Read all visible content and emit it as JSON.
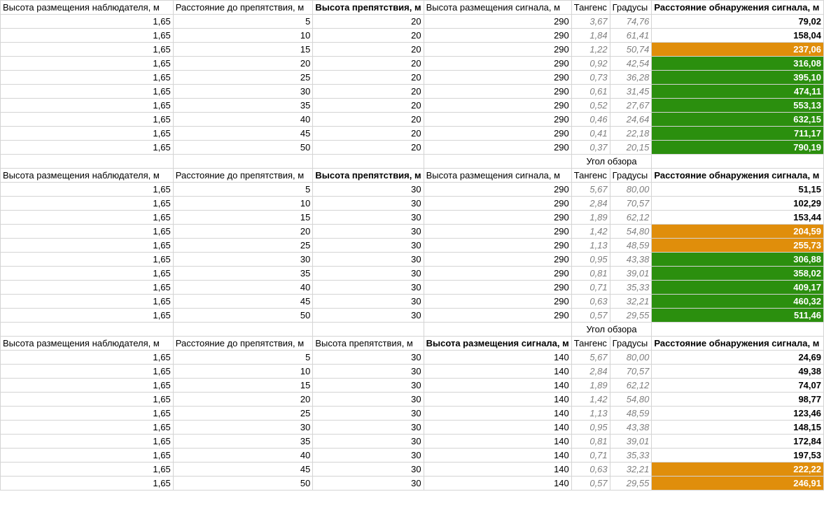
{
  "colors": {
    "orange": "#e08e0b",
    "green": "#2b8f0e",
    "gray_text": "#7f7f7f",
    "grid": "#d4d4d4"
  },
  "blocks": [
    {
      "caption": "",
      "headers": [
        "Высота размещения наблюдателя, м",
        "Расстояние до препятствия, м",
        "Высота препятствия, м",
        "Высота размещения сигнала, м",
        "Тангенс",
        "Градусы",
        "Расстояние обнаружения сигнала, м"
      ],
      "bold_headers": [
        2,
        6
      ],
      "rows": [
        {
          "c": [
            "1,65",
            "5",
            "20",
            "290",
            "3,67",
            "74,76",
            "79,02"
          ],
          "fill": ""
        },
        {
          "c": [
            "1,65",
            "10",
            "20",
            "290",
            "1,84",
            "61,41",
            "158,04"
          ],
          "fill": ""
        },
        {
          "c": [
            "1,65",
            "15",
            "20",
            "290",
            "1,22",
            "50,74",
            "237,06"
          ],
          "fill": "orange"
        },
        {
          "c": [
            "1,65",
            "20",
            "20",
            "290",
            "0,92",
            "42,54",
            "316,08"
          ],
          "fill": "green"
        },
        {
          "c": [
            "1,65",
            "25",
            "20",
            "290",
            "0,73",
            "36,28",
            "395,10"
          ],
          "fill": "green"
        },
        {
          "c": [
            "1,65",
            "30",
            "20",
            "290",
            "0,61",
            "31,45",
            "474,11"
          ],
          "fill": "green"
        },
        {
          "c": [
            "1,65",
            "35",
            "20",
            "290",
            "0,52",
            "27,67",
            "553,13"
          ],
          "fill": "green"
        },
        {
          "c": [
            "1,65",
            "40",
            "20",
            "290",
            "0,46",
            "24,64",
            "632,15"
          ],
          "fill": "green"
        },
        {
          "c": [
            "1,65",
            "45",
            "20",
            "290",
            "0,41",
            "22,18",
            "711,17"
          ],
          "fill": "green"
        },
        {
          "c": [
            "1,65",
            "50",
            "20",
            "290",
            "0,37",
            "20,15",
            "790,19"
          ],
          "fill": "green"
        }
      ]
    },
    {
      "caption": "Угол обзора",
      "headers": [
        "Высота размещения наблюдателя, м",
        "Расстояние до препятствия, м",
        "Высота препятствия, м",
        "Высота размещения сигнала, м",
        "Тангенс",
        "Градусы",
        "Расстояние обнаружения сигнала, м"
      ],
      "bold_headers": [
        2,
        6
      ],
      "rows": [
        {
          "c": [
            "1,65",
            "5",
            "30",
            "290",
            "5,67",
            "80,00",
            "51,15"
          ],
          "fill": ""
        },
        {
          "c": [
            "1,65",
            "10",
            "30",
            "290",
            "2,84",
            "70,57",
            "102,29"
          ],
          "fill": ""
        },
        {
          "c": [
            "1,65",
            "15",
            "30",
            "290",
            "1,89",
            "62,12",
            "153,44"
          ],
          "fill": ""
        },
        {
          "c": [
            "1,65",
            "20",
            "30",
            "290",
            "1,42",
            "54,80",
            "204,59"
          ],
          "fill": "orange"
        },
        {
          "c": [
            "1,65",
            "25",
            "30",
            "290",
            "1,13",
            "48,59",
            "255,73"
          ],
          "fill": "orange"
        },
        {
          "c": [
            "1,65",
            "30",
            "30",
            "290",
            "0,95",
            "43,38",
            "306,88"
          ],
          "fill": "green"
        },
        {
          "c": [
            "1,65",
            "35",
            "30",
            "290",
            "0,81",
            "39,01",
            "358,02"
          ],
          "fill": "green"
        },
        {
          "c": [
            "1,65",
            "40",
            "30",
            "290",
            "0,71",
            "35,33",
            "409,17"
          ],
          "fill": "green"
        },
        {
          "c": [
            "1,65",
            "45",
            "30",
            "290",
            "0,63",
            "32,21",
            "460,32"
          ],
          "fill": "green"
        },
        {
          "c": [
            "1,65",
            "50",
            "30",
            "290",
            "0,57",
            "29,55",
            "511,46"
          ],
          "fill": "green"
        }
      ]
    },
    {
      "caption": "Угол обзора",
      "headers": [
        "Высота размещения наблюдателя, м",
        "Расстояние до препятствия, м",
        "Высота препятствия, м",
        "Высота размещения сигнала, м",
        "Тангенс",
        "Градусы",
        "Расстояние обнаружения сигнала, м"
      ],
      "bold_headers": [
        3,
        6
      ],
      "rows": [
        {
          "c": [
            "1,65",
            "5",
            "30",
            "140",
            "5,67",
            "80,00",
            "24,69"
          ],
          "fill": ""
        },
        {
          "c": [
            "1,65",
            "10",
            "30",
            "140",
            "2,84",
            "70,57",
            "49,38"
          ],
          "fill": ""
        },
        {
          "c": [
            "1,65",
            "15",
            "30",
            "140",
            "1,89",
            "62,12",
            "74,07"
          ],
          "fill": ""
        },
        {
          "c": [
            "1,65",
            "20",
            "30",
            "140",
            "1,42",
            "54,80",
            "98,77"
          ],
          "fill": ""
        },
        {
          "c": [
            "1,65",
            "25",
            "30",
            "140",
            "1,13",
            "48,59",
            "123,46"
          ],
          "fill": ""
        },
        {
          "c": [
            "1,65",
            "30",
            "30",
            "140",
            "0,95",
            "43,38",
            "148,15"
          ],
          "fill": ""
        },
        {
          "c": [
            "1,65",
            "35",
            "30",
            "140",
            "0,81",
            "39,01",
            "172,84"
          ],
          "fill": ""
        },
        {
          "c": [
            "1,65",
            "40",
            "30",
            "140",
            "0,71",
            "35,33",
            "197,53"
          ],
          "fill": ""
        },
        {
          "c": [
            "1,65",
            "45",
            "30",
            "140",
            "0,63",
            "32,21",
            "222,22"
          ],
          "fill": "orange"
        },
        {
          "c": [
            "1,65",
            "50",
            "30",
            "140",
            "0,57",
            "29,55",
            "246,91"
          ],
          "fill": "orange"
        }
      ]
    }
  ]
}
